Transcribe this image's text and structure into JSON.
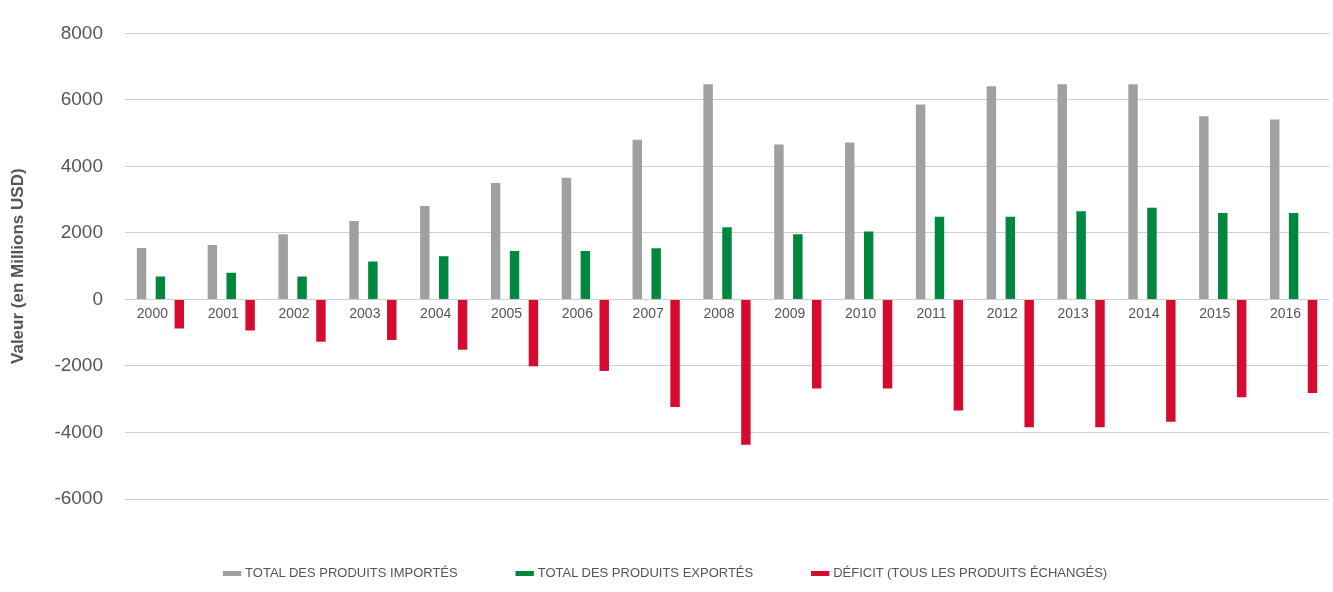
{
  "chart_data": {
    "type": "bar",
    "ylabel": "Valeur (en Millions USD)",
    "categories": [
      "2000",
      "2001",
      "2002",
      "2003",
      "2004",
      "2005",
      "2006",
      "2007",
      "2008",
      "2009",
      "2010",
      "2011",
      "2012",
      "2013",
      "2014",
      "2015",
      "2016"
    ],
    "series": [
      {
        "name": "TOTAL DES PRODUITS IMPORTÉS",
        "color": "#a0a0a0",
        "values": [
          1550,
          1640,
          1960,
          2360,
          2810,
          3500,
          3660,
          4800,
          6470,
          4660,
          4720,
          5860,
          6410,
          6470,
          6470,
          5510,
          5410
        ]
      },
      {
        "name": "TOTAL DES PRODUITS EXPORTÉS",
        "color": "#00873e",
        "values": [
          690,
          800,
          690,
          1140,
          1300,
          1460,
          1460,
          1540,
          2170,
          1960,
          2040,
          2490,
          2490,
          2650,
          2760,
          2600,
          2600
        ]
      },
      {
        "name": "DÉFICIT (TOUS LES PRODUITS ÉCHANGÉS)",
        "color": "#d50c2f",
        "values": [
          -870,
          -930,
          -1270,
          -1220,
          -1510,
          -2010,
          -2150,
          -3230,
          -4370,
          -2680,
          -2680,
          -3340,
          -3840,
          -3840,
          -3680,
          -2940,
          -2810
        ]
      }
    ],
    "ylim": [
      -6000,
      8000
    ],
    "yticks": [
      -6000,
      -4000,
      -2000,
      0,
      2000,
      4000,
      6000,
      8000
    ],
    "grid": "y",
    "legend": "bottom"
  }
}
